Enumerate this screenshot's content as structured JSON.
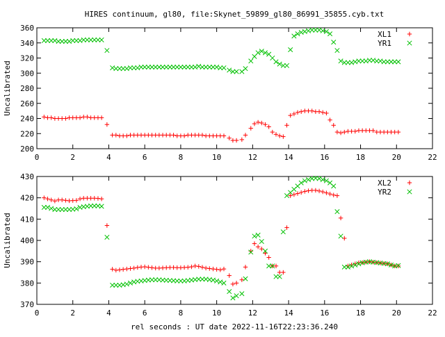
{
  "title": "HIRES continuum, gl80, file:Skynet_59899_gl80_86991_35855.cyb.txt",
  "xlabel": "rel seconds : UT date 2022-11-16T22:23:36.240",
  "chart_data": [
    {
      "type": "scatter",
      "ylabel": "Uncalibrated",
      "xlim": [
        0,
        22
      ],
      "ylim": [
        200,
        360
      ],
      "xticks": [
        0,
        2,
        4,
        6,
        8,
        10,
        12,
        14,
        16,
        18,
        20,
        22
      ],
      "yticks": [
        200,
        220,
        240,
        260,
        280,
        300,
        320,
        340,
        360
      ],
      "legend_position": "top-right",
      "series": [
        {
          "name": "XL1",
          "marker": "+",
          "color": "#ff0000",
          "x": [
            0.4,
            0.6,
            0.8,
            1.0,
            1.2,
            1.4,
            1.6,
            1.8,
            2.0,
            2.2,
            2.4,
            2.6,
            2.8,
            3.0,
            3.2,
            3.4,
            3.6,
            3.9,
            4.2,
            4.4,
            4.6,
            4.8,
            5.0,
            5.2,
            5.4,
            5.6,
            5.8,
            6.0,
            6.2,
            6.4,
            6.6,
            6.8,
            7.0,
            7.2,
            7.4,
            7.6,
            7.8,
            8.0,
            8.2,
            8.4,
            8.6,
            8.8,
            9.0,
            9.2,
            9.4,
            9.6,
            9.8,
            10.0,
            10.2,
            10.4,
            10.7,
            10.9,
            11.1,
            11.4,
            11.6,
            11.9,
            12.1,
            12.3,
            12.5,
            12.7,
            12.9,
            13.1,
            13.3,
            13.5,
            13.7,
            13.9,
            14.1,
            14.3,
            14.5,
            14.7,
            14.9,
            15.1,
            15.3,
            15.5,
            15.7,
            15.9,
            16.1,
            16.3,
            16.5,
            16.7,
            16.9,
            17.1,
            17.3,
            17.5,
            17.7,
            17.9,
            18.1,
            18.3,
            18.5,
            18.7,
            18.9,
            19.1,
            19.3,
            19.5,
            19.7,
            19.9,
            20.1
          ],
          "y": [
            242,
            241,
            241,
            240,
            240,
            240,
            240,
            241,
            241,
            241,
            241,
            242,
            242,
            241,
            241,
            241,
            241,
            232,
            218,
            218,
            217,
            217,
            217,
            218,
            218,
            218,
            218,
            218,
            218,
            218,
            218,
            218,
            218,
            218,
            218,
            218,
            217,
            217,
            217,
            218,
            218,
            218,
            218,
            218,
            217,
            217,
            217,
            217,
            217,
            217,
            214,
            211,
            211,
            212,
            218,
            227,
            233,
            235,
            234,
            232,
            229,
            222,
            219,
            217,
            216,
            231,
            244,
            246,
            248,
            249,
            250,
            250,
            250,
            249,
            249,
            248,
            247,
            238,
            231,
            222,
            221,
            222,
            223,
            223,
            223,
            224,
            224,
            224,
            224,
            224,
            222,
            222,
            222,
            222,
            222,
            222,
            222
          ]
        },
        {
          "name": "YR1",
          "marker": "x",
          "color": "#00c000",
          "x": [
            0.4,
            0.6,
            0.8,
            1.0,
            1.2,
            1.4,
            1.6,
            1.8,
            2.0,
            2.2,
            2.4,
            2.6,
            2.8,
            3.0,
            3.2,
            3.4,
            3.6,
            3.9,
            4.2,
            4.4,
            4.6,
            4.8,
            5.0,
            5.2,
            5.4,
            5.6,
            5.8,
            6.0,
            6.2,
            6.4,
            6.6,
            6.8,
            7.0,
            7.2,
            7.4,
            7.6,
            7.8,
            8.0,
            8.2,
            8.4,
            8.6,
            8.8,
            9.0,
            9.2,
            9.4,
            9.6,
            9.8,
            10.0,
            10.2,
            10.4,
            10.7,
            10.9,
            11.1,
            11.4,
            11.6,
            11.9,
            12.1,
            12.3,
            12.5,
            12.7,
            12.9,
            13.1,
            13.3,
            13.5,
            13.7,
            13.9,
            14.1,
            14.3,
            14.5,
            14.7,
            14.9,
            15.1,
            15.3,
            15.5,
            15.7,
            15.9,
            16.1,
            16.3,
            16.5,
            16.7,
            16.9,
            17.1,
            17.3,
            17.5,
            17.7,
            17.9,
            18.1,
            18.3,
            18.5,
            18.7,
            18.9,
            19.1,
            19.3,
            19.5,
            19.7,
            19.9,
            20.1
          ],
          "y": [
            343,
            343,
            343,
            343,
            342,
            342,
            342,
            342,
            343,
            343,
            343,
            344,
            344,
            344,
            344,
            344,
            344,
            330,
            307,
            306,
            306,
            306,
            306,
            307,
            307,
            307,
            308,
            308,
            308,
            308,
            308,
            308,
            308,
            308,
            308,
            308,
            308,
            308,
            308,
            308,
            308,
            308,
            309,
            308,
            308,
            308,
            308,
            308,
            307,
            307,
            304,
            302,
            302,
            302,
            306,
            316,
            322,
            327,
            329,
            327,
            325,
            320,
            315,
            312,
            310,
            310,
            331,
            349,
            352,
            354,
            355,
            356,
            357,
            357,
            357,
            356,
            355,
            352,
            341,
            330,
            316,
            314,
            314,
            314,
            315,
            316,
            316,
            316,
            317,
            317,
            316,
            316,
            315,
            315,
            315,
            315,
            315
          ]
        }
      ]
    },
    {
      "type": "scatter",
      "ylabel": "Uncalibrated",
      "xlim": [
        0,
        22
      ],
      "ylim": [
        370,
        430
      ],
      "xticks": [
        0,
        2,
        4,
        6,
        8,
        10,
        12,
        14,
        16,
        18,
        20,
        22
      ],
      "yticks": [
        370,
        380,
        390,
        400,
        410,
        420,
        430
      ],
      "legend_position": "top-right",
      "series": [
        {
          "name": "XL2",
          "marker": "+",
          "color": "#ff0000",
          "x": [
            0.4,
            0.6,
            0.8,
            1.0,
            1.2,
            1.4,
            1.6,
            1.8,
            2.0,
            2.2,
            2.4,
            2.6,
            2.8,
            3.0,
            3.2,
            3.4,
            3.6,
            3.9,
            4.2,
            4.4,
            4.6,
            4.8,
            5.0,
            5.2,
            5.4,
            5.6,
            5.8,
            6.0,
            6.2,
            6.4,
            6.6,
            6.8,
            7.0,
            7.2,
            7.4,
            7.6,
            7.8,
            8.0,
            8.2,
            8.4,
            8.6,
            8.8,
            9.0,
            9.2,
            9.4,
            9.6,
            9.8,
            10.0,
            10.2,
            10.4,
            10.7,
            10.9,
            11.1,
            11.4,
            11.6,
            11.9,
            12.1,
            12.3,
            12.5,
            12.7,
            12.9,
            13.1,
            13.3,
            13.5,
            13.7,
            13.9,
            14.1,
            14.3,
            14.5,
            14.7,
            14.9,
            15.1,
            15.3,
            15.5,
            15.7,
            15.9,
            16.1,
            16.3,
            16.5,
            16.7,
            16.9,
            17.1,
            17.3,
            17.5,
            17.7,
            17.9,
            18.1,
            18.3,
            18.5,
            18.7,
            18.9,
            19.1,
            19.3,
            19.5,
            19.7,
            19.9,
            20.1
          ],
          "y": [
            420,
            419.5,
            419,
            418.5,
            419,
            419,
            418.8,
            418.6,
            418.7,
            418.8,
            419.5,
            419.8,
            419.8,
            419.8,
            419.8,
            419.7,
            419.5,
            407,
            386.5,
            386,
            386.2,
            386.4,
            386.6,
            386.8,
            387,
            387.3,
            387.5,
            387.6,
            387.4,
            387.2,
            387,
            387,
            387.1,
            387.2,
            387.3,
            387.3,
            387.2,
            387.2,
            387.3,
            387.4,
            387.6,
            388,
            387.8,
            387.4,
            387,
            386.8,
            386.6,
            386.4,
            386.2,
            386.6,
            383.5,
            379.5,
            380,
            381.5,
            387.5,
            395,
            398.5,
            397,
            396,
            394,
            392,
            388,
            388,
            385,
            385,
            406,
            421,
            421.5,
            422,
            422.5,
            423,
            423.3,
            423.5,
            423.5,
            423.2,
            422.8,
            422.3,
            421.8,
            421.3,
            421,
            410.5,
            401,
            388,
            388.5,
            389,
            389.5,
            389.6,
            389.8,
            390,
            389.8,
            389.6,
            389.4,
            389.2,
            389,
            388.5,
            388,
            388
          ]
        },
        {
          "name": "YR2",
          "marker": "x",
          "color": "#00c000",
          "x": [
            0.4,
            0.6,
            0.8,
            1.0,
            1.2,
            1.4,
            1.6,
            1.8,
            2.0,
            2.2,
            2.4,
            2.6,
            2.8,
            3.0,
            3.2,
            3.4,
            3.6,
            3.9,
            4.2,
            4.4,
            4.6,
            4.8,
            5.0,
            5.2,
            5.4,
            5.6,
            5.8,
            6.0,
            6.2,
            6.4,
            6.6,
            6.8,
            7.0,
            7.2,
            7.4,
            7.6,
            7.8,
            8.0,
            8.2,
            8.4,
            8.6,
            8.8,
            9.0,
            9.2,
            9.4,
            9.6,
            9.8,
            10.0,
            10.2,
            10.4,
            10.7,
            10.9,
            11.1,
            11.4,
            11.6,
            11.9,
            12.1,
            12.3,
            12.5,
            12.7,
            12.9,
            13.1,
            13.3,
            13.5,
            13.7,
            13.9,
            14.1,
            14.3,
            14.5,
            14.7,
            14.9,
            15.1,
            15.3,
            15.5,
            15.7,
            15.9,
            16.1,
            16.3,
            16.5,
            16.7,
            16.9,
            17.1,
            17.3,
            17.5,
            17.7,
            17.9,
            18.1,
            18.3,
            18.5,
            18.7,
            18.9,
            19.1,
            19.3,
            19.5,
            19.7,
            19.9,
            20.1
          ],
          "y": [
            415.5,
            415.5,
            415,
            414.5,
            414.5,
            414.5,
            414.5,
            414.5,
            414.6,
            414.8,
            415.5,
            415.8,
            416,
            416.2,
            416.2,
            416.2,
            416,
            401.5,
            379,
            379,
            379,
            379.2,
            379.5,
            380,
            380.5,
            380.8,
            381,
            381.2,
            381.4,
            381.5,
            381.5,
            381.5,
            381.4,
            381.3,
            381.2,
            381.1,
            381,
            381,
            381,
            381.2,
            381.4,
            381.6,
            381.8,
            381.8,
            381.8,
            381.6,
            381.4,
            381,
            380.5,
            380,
            376,
            373,
            374,
            375,
            382,
            394.5,
            402,
            402.5,
            399.5,
            395,
            388,
            388,
            383,
            383,
            404,
            421,
            422.5,
            424,
            425.5,
            427,
            428,
            428.5,
            429,
            429.2,
            429,
            428.5,
            428,
            427,
            425.5,
            413.5,
            402,
            387.5,
            387.5,
            388,
            388.5,
            389,
            389.5,
            389.8,
            390,
            389.8,
            389.6,
            389.4,
            389.2,
            389,
            388.5,
            388,
            388.2
          ]
        }
      ]
    }
  ]
}
